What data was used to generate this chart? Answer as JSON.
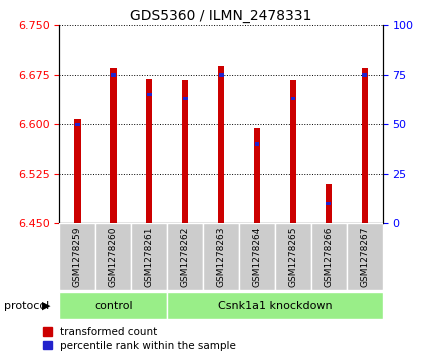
{
  "title": "GDS5360 / ILMN_2478331",
  "samples": [
    "GSM1278259",
    "GSM1278260",
    "GSM1278261",
    "GSM1278262",
    "GSM1278263",
    "GSM1278264",
    "GSM1278265",
    "GSM1278266",
    "GSM1278267"
  ],
  "transformed_counts": [
    6.608,
    6.685,
    6.668,
    6.667,
    6.688,
    6.595,
    6.667,
    6.51,
    6.685
  ],
  "percentile_ranks": [
    50,
    75,
    65,
    63,
    75,
    40,
    63,
    10,
    75
  ],
  "ylim_left": [
    6.45,
    6.75
  ],
  "ylim_right": [
    0,
    100
  ],
  "yticks_left": [
    6.45,
    6.525,
    6.6,
    6.675,
    6.75
  ],
  "yticks_right": [
    0,
    25,
    50,
    75,
    100
  ],
  "control_count": 3,
  "bar_color_red": "#cc0000",
  "bar_color_blue": "#2222cc",
  "protocol_box_color": "#99ee88",
  "tick_label_area_color": "#cccccc",
  "bar_bottom": 6.45,
  "bar_width": 0.18
}
